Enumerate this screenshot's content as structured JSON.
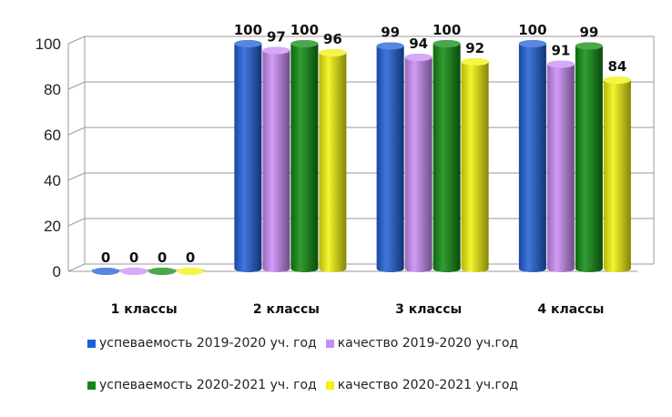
{
  "chart_data": {
    "type": "bar",
    "categories": [
      "1 классы",
      "2 классы",
      "3 классы",
      "4 классы"
    ],
    "series": [
      {
        "name": "успеваемость 2019-2020 уч. год",
        "color": "#1f5fd6",
        "values": [
          0,
          100,
          99,
          100
        ]
      },
      {
        "name": "качество 2019-2020 уч.год",
        "color": "#c98cf5",
        "values": [
          0,
          97,
          94,
          91
        ]
      },
      {
        "name": "успеваемость 2020-2021 уч. год",
        "color": "#0f8a10",
        "values": [
          0,
          100,
          100,
          99
        ]
      },
      {
        "name": "качество 2020-2021 уч.год",
        "color": "#f2f20a",
        "values": [
          0,
          96,
          92,
          84
        ]
      }
    ],
    "ylim": [
      0,
      100
    ],
    "yticks": [
      0,
      20,
      40,
      60,
      80,
      100
    ],
    "grid": true,
    "legend_position": "bottom",
    "title": "",
    "xlabel": "",
    "ylabel": ""
  }
}
